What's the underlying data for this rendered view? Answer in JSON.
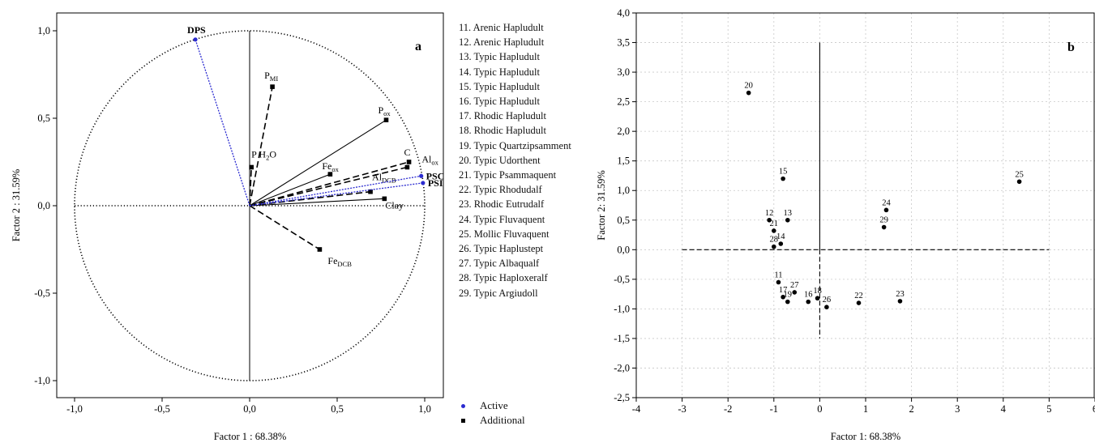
{
  "chart_data": [
    {
      "type": "scatter",
      "panel_label": "a",
      "xlabel": "Factor 1 : 68.38%",
      "ylabel": "Factor 2 : 31.59%",
      "xlim": [
        -1.1,
        1.1
      ],
      "ylim": [
        -1.1,
        1.1
      ],
      "xticks": [
        "-1,0",
        "-0,5",
        "0,0",
        "0,5",
        "1,0"
      ],
      "yticks": [
        "1,0",
        "0,5",
        "0,0",
        "-0,5",
        "-1,0"
      ],
      "unit_circle": true,
      "active_vectors": [
        {
          "label": "DPS",
          "x": -0.31,
          "y": 0.95
        },
        {
          "label": "PSC",
          "x": 0.98,
          "y": 0.17
        },
        {
          "label": "PSI",
          "x": 0.99,
          "y": 0.13
        }
      ],
      "additional_vectors": [
        {
          "label": "PMI",
          "main": "P",
          "sub": "MI",
          "x": 0.13,
          "y": 0.68,
          "style": "dashed"
        },
        {
          "label": "P H2O",
          "main": "P H",
          "sub": "2",
          "tail": "O",
          "x": 0.01,
          "y": 0.22,
          "style": "dashed"
        },
        {
          "label": "Pox",
          "main": "P",
          "sub": "ox",
          "x": 0.78,
          "y": 0.49,
          "style": "solid"
        },
        {
          "label": "C",
          "main": "C",
          "sub": "",
          "x": 0.91,
          "y": 0.25,
          "style": "dashed"
        },
        {
          "label": "Alox",
          "main": "Al",
          "sub": "ox",
          "x": 0.9,
          "y": 0.22,
          "style": "dashed"
        },
        {
          "label": "Feox",
          "main": "Fe",
          "sub": "ox",
          "x": 0.46,
          "y": 0.18,
          "style": "solid"
        },
        {
          "label": "AlDCB",
          "main": "Al",
          "sub": "DCB",
          "x": 0.69,
          "y": 0.08,
          "style": "dashed"
        },
        {
          "label": "Clay",
          "main": "Clay",
          "sub": "",
          "x": 0.77,
          "y": 0.04,
          "style": "solid"
        },
        {
          "label": "FeDCB",
          "main": "Fe",
          "sub": "DCB",
          "x": 0.4,
          "y": -0.25,
          "style": "dashed"
        }
      ],
      "legend": [
        {
          "symbol": "circle",
          "color": "#2b2bd0",
          "label": "Active"
        },
        {
          "symbol": "square",
          "color": "#000000",
          "label": "Additional"
        }
      ]
    },
    {
      "type": "scatter",
      "panel_label": "b",
      "xlabel": "Factor 1: 68.38%",
      "ylabel": "Factor 2: 31.59%",
      "xlim": [
        -4,
        6
      ],
      "ylim": [
        -2.5,
        4.0
      ],
      "xticks": [
        "-4",
        "-3",
        "-2",
        "-1",
        "0",
        "1",
        "2",
        "3",
        "4",
        "5",
        "6"
      ],
      "yticks": [
        "4,0",
        "3,5",
        "3,0",
        "2,5",
        "2,0",
        "1,5",
        "1,0",
        "0,5",
        "0,0",
        "-0,5",
        "-1,0",
        "-1,5",
        "-2,0",
        "-2,5"
      ],
      "grid": true,
      "points": [
        {
          "label": "11",
          "x": -0.9,
          "y": -0.55
        },
        {
          "label": "12",
          "x": -1.1,
          "y": 0.5
        },
        {
          "label": "13",
          "x": -0.7,
          "y": 0.5
        },
        {
          "label": "14",
          "x": -0.85,
          "y": 0.1
        },
        {
          "label": "15",
          "x": -0.8,
          "y": 1.2
        },
        {
          "label": "16",
          "x": -0.25,
          "y": -0.88
        },
        {
          "label": "17",
          "x": -0.8,
          "y": -0.8
        },
        {
          "label": "18",
          "x": -0.05,
          "y": -0.82
        },
        {
          "label": "19",
          "x": -0.7,
          "y": -0.88
        },
        {
          "label": "20",
          "x": -1.55,
          "y": 2.65
        },
        {
          "label": "21",
          "x": -1.0,
          "y": 0.32
        },
        {
          "label": "22",
          "x": 0.85,
          "y": -0.9
        },
        {
          "label": "23",
          "x": 1.75,
          "y": -0.87
        },
        {
          "label": "24",
          "x": 1.45,
          "y": 0.67
        },
        {
          "label": "25",
          "x": 4.35,
          "y": 1.15
        },
        {
          "label": "26",
          "x": 0.15,
          "y": -0.97
        },
        {
          "label": "27",
          "x": -0.55,
          "y": -0.72
        },
        {
          "label": "28",
          "x": -1.0,
          "y": 0.05
        },
        {
          "label": "29",
          "x": 1.4,
          "y": 0.38
        }
      ]
    }
  ],
  "soil_legend": [
    "11. Arenic Hapludult",
    "12. Arenic Hapludult",
    "13. Typic Hapludult",
    "14. Typic Hapludult",
    "15. Typic Hapludult",
    "16. Typic Hapludult",
    "17. Rhodic Hapludult",
    "18. Rhodic Hapludult",
    "19. Typic Quartzipsamment",
    "20. Typic Udorthent",
    "21. Typic Psammaquent",
    "22. Typic Rhodudalf",
    "23. Rhodic Eutrudalf",
    "24. Typic Fluvaquent",
    "25. Mollic Fluvaquent",
    "26. Typic Haplustept",
    "27. Typic Albaqualf",
    "28. Typic Haploxeralf",
    "29. Typic Argiudoll"
  ]
}
